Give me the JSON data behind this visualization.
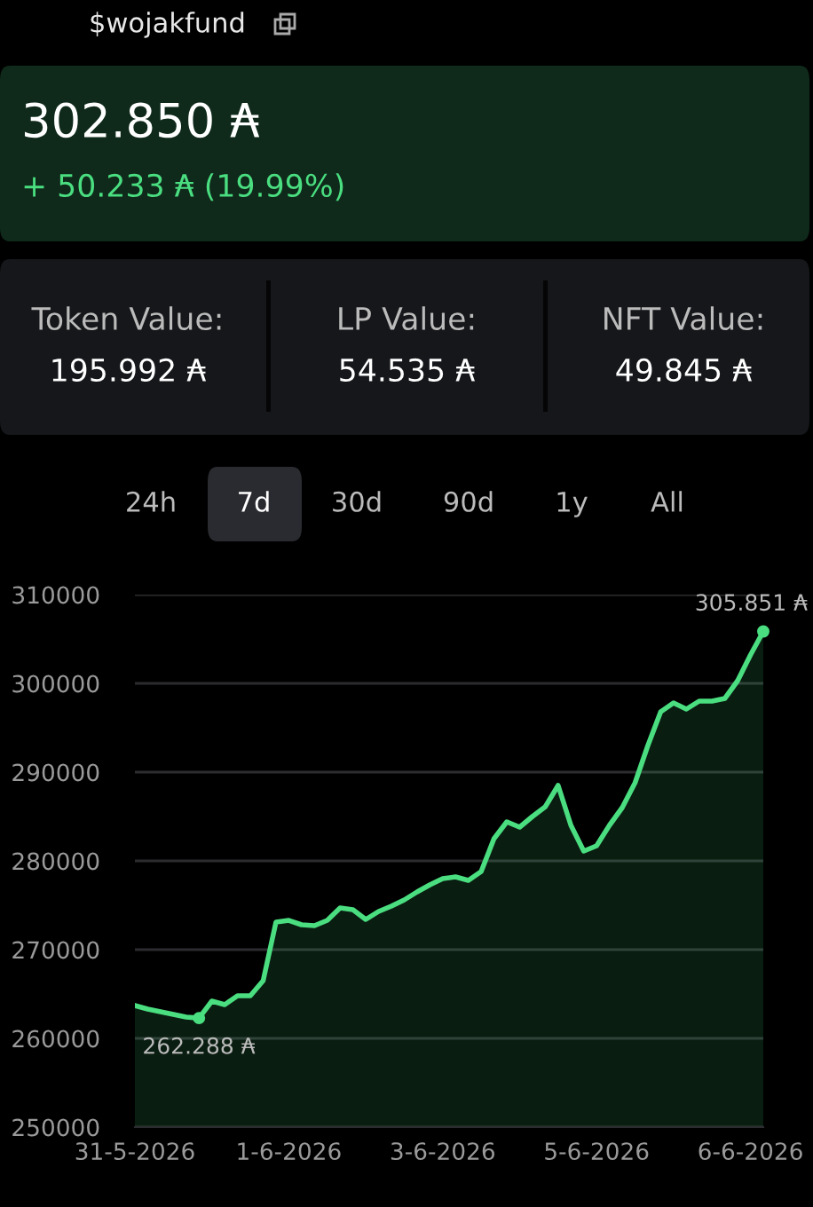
{
  "chart_data": {
    "type": "area",
    "annotations": [
      "$wojakfund",
      "302.850 ₳",
      "+ 50.233 ₳ (19.99%)",
      "Token Value:",
      "195.992 ₳",
      "LP Value:",
      "54.535 ₳",
      "NFT Value:",
      "49.845 ₳",
      "24h",
      "7d",
      "30d",
      "90d",
      "1y",
      "All",
      {
        "text": "262.288 ₳",
        "y": 262288
      },
      {
        "text": "305.851 ₳",
        "y": 305851
      }
    ],
    "categories": [
      "31-5-2026",
      null,
      null,
      null,
      null,
      null,
      null,
      null,
      null,
      null,
      null,
      null,
      "1-6-2026",
      null,
      null,
      null,
      null,
      null,
      null,
      null,
      null,
      null,
      null,
      null,
      "3-6-2026",
      null,
      null,
      null,
      null,
      null,
      null,
      null,
      null,
      null,
      null,
      null,
      "5-6-2026",
      null,
      null,
      null,
      null,
      null,
      null,
      null,
      null,
      null,
      null,
      null,
      "6-6-2026",
      null
    ],
    "series": [
      {
        "color": "#4ade80",
        "values": [
          263700,
          263300,
          263000,
          262700,
          262400,
          262288,
          264200,
          263800,
          264800,
          264800,
          266500,
          273100,
          273300,
          272800,
          272700,
          273300,
          274700,
          274500,
          273400,
          274300,
          274900,
          275600,
          276500,
          277300,
          278000,
          278200,
          277800,
          278800,
          282500,
          284400,
          283800,
          285000,
          286100,
          288500,
          284000,
          281100,
          281700,
          284000,
          286000,
          288800,
          293000,
          296800,
          297800,
          297100,
          298000,
          298000,
          298300,
          300300,
          303200,
          305851
        ]
      }
    ],
    "ylim": [
      250000,
      310000
    ],
    "yticks": [
      250000,
      260000,
      270000,
      280000,
      290000,
      300000,
      310000
    ],
    "grid": "y",
    "legend": false,
    "marker": "none",
    "line_style": "solid"
  }
}
